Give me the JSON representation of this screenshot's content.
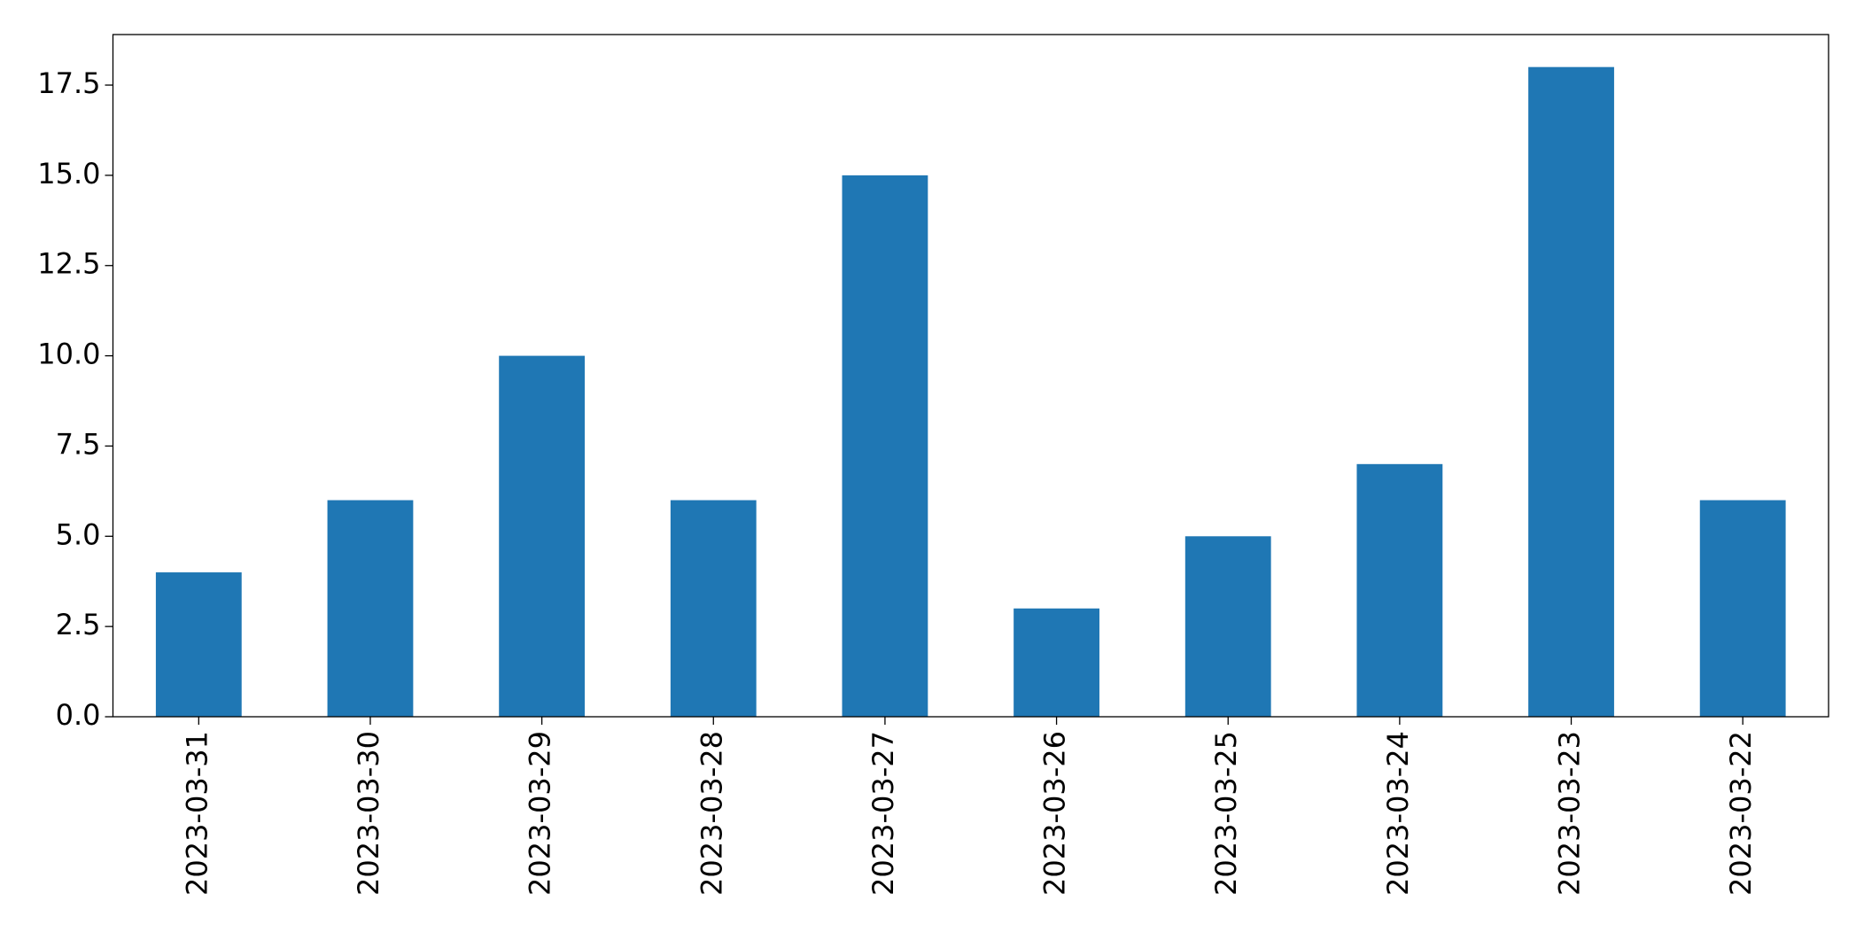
{
  "chart_data": {
    "type": "bar",
    "categories": [
      "2023-03-31",
      "2023-03-30",
      "2023-03-29",
      "2023-03-28",
      "2023-03-27",
      "2023-03-26",
      "2023-03-25",
      "2023-03-24",
      "2023-03-23",
      "2023-03-22"
    ],
    "values": [
      4,
      6,
      10,
      6,
      15,
      3,
      5,
      7,
      18,
      6
    ],
    "color": "#1f77b4",
    "ylim": [
      0,
      18.9
    ],
    "yticks": [
      {
        "value": 0,
        "label": "0.0"
      },
      2.5,
      {
        "value": 5,
        "label": "5.0"
      },
      7.5,
      {
        "value": 10,
        "label": "10.0"
      },
      12.5,
      {
        "value": 15,
        "label": "15.0"
      },
      17.5
    ],
    "grid": false
  }
}
